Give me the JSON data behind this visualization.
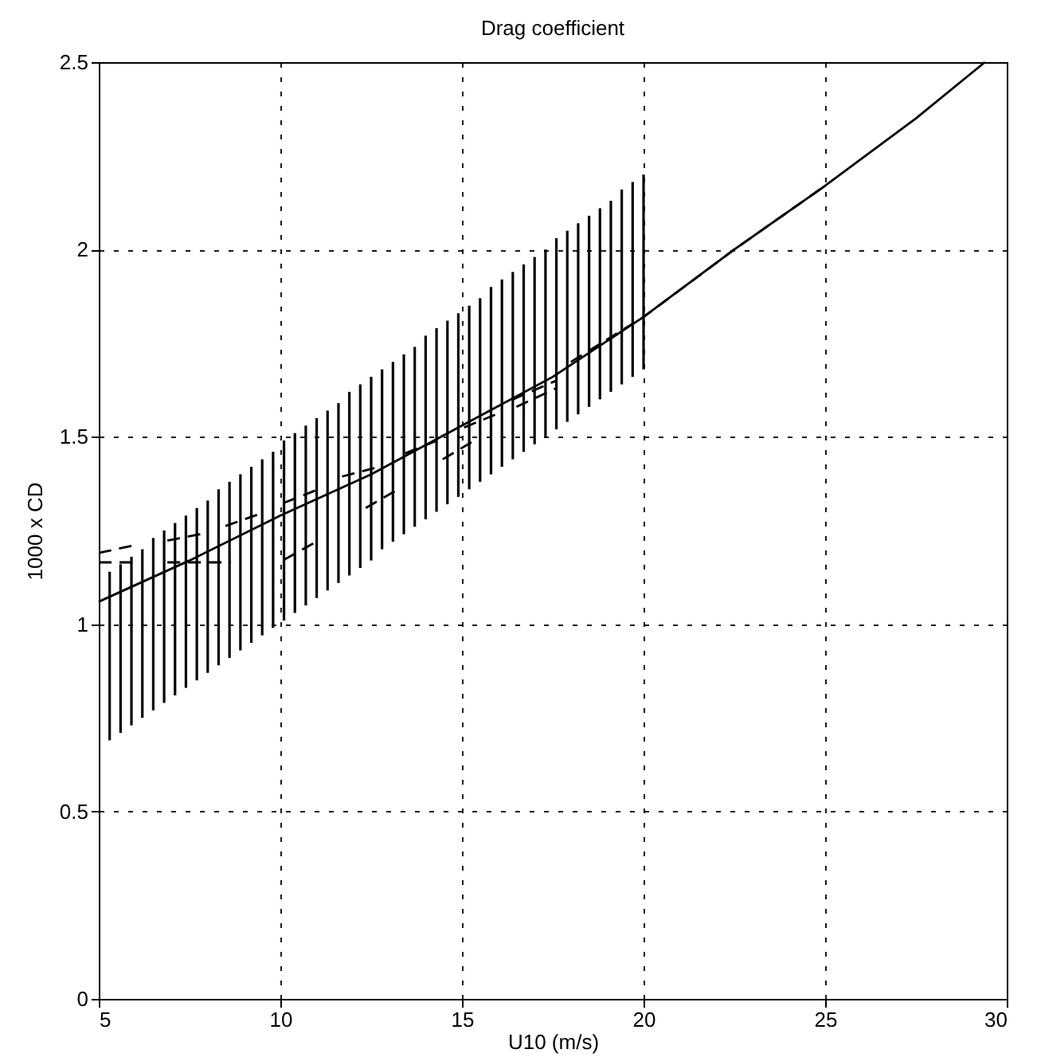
{
  "chart_data": {
    "type": "line",
    "title": "Drag coefficient",
    "xlabel": "U10  (m/s)",
    "ylabel": "1000 x CD",
    "xlim": [
      5,
      30
    ],
    "ylim": [
      0,
      2.5
    ],
    "xticks": [
      5,
      10,
      15,
      20,
      25,
      30
    ],
    "yticks": [
      0,
      0.5,
      1,
      1.5,
      2,
      2.5
    ],
    "grid": true,
    "series": [
      {
        "line_style": "solid",
        "color": "#000000",
        "x": [
          5,
          7.5,
          10,
          12.5,
          15,
          17.5,
          20,
          22.5,
          25,
          27.5,
          29.4
        ],
        "values": [
          1.06,
          1.17,
          1.29,
          1.4,
          1.53,
          1.66,
          1.82,
          2.0,
          2.17,
          2.35,
          2.5
        ]
      },
      {
        "line_style": "dashed",
        "color": "#000000",
        "x": [
          5,
          5.95
        ],
        "values": [
          1.19,
          1.21
        ]
      },
      {
        "line_style": "dashed",
        "color": "#000000",
        "x": [
          5,
          5.9
        ],
        "values": [
          1.165,
          1.165
        ]
      },
      {
        "line_style": "dashed",
        "color": "#000000",
        "x": [
          6.89,
          7.84
        ],
        "values": [
          1.223,
          1.241
        ]
      },
      {
        "line_style": "dashed",
        "color": "#000000",
        "x": [
          6.89,
          8.64
        ],
        "values": [
          1.165,
          1.165
        ]
      },
      {
        "line_style": "dashed",
        "color": "#000000",
        "x": [
          8.49,
          9.51
        ],
        "values": [
          1.262,
          1.297
        ]
      },
      {
        "line_style": "dashed",
        "color": "#000000",
        "x": [
          10.1,
          11.05
        ],
        "values": [
          1.324,
          1.36
        ]
      },
      {
        "line_style": "dashed",
        "color": "#000000",
        "x": [
          10.1,
          10.99
        ],
        "values": [
          1.172,
          1.22
        ]
      },
      {
        "line_style": "dashed",
        "color": "#000000",
        "x": [
          11.7,
          12.72
        ],
        "values": [
          1.394,
          1.42
        ]
      },
      {
        "line_style": "dashed",
        "color": "#000000",
        "x": [
          12.35,
          13.24
        ],
        "values": [
          1.31,
          1.36
        ]
      },
      {
        "line_style": "dashed",
        "color": "#000000",
        "x": [
          13.44,
          14.32
        ],
        "values": [
          1.456,
          1.49
        ]
      },
      {
        "line_style": "dashed",
        "color": "#000000",
        "x": [
          14.47,
          15.34
        ],
        "values": [
          1.44,
          1.49
        ]
      },
      {
        "line_style": "dashed",
        "color": "#000000",
        "x": [
          15.06,
          15.94
        ],
        "values": [
          1.525,
          1.56
        ]
      },
      {
        "line_style": "dashed",
        "color": "#000000",
        "x": [
          16.4,
          17.6
        ],
        "values": [
          1.6,
          1.65
        ]
      },
      {
        "line_style": "dashed",
        "color": "#000000",
        "x": [
          16.5,
          17.6
        ],
        "values": [
          1.58,
          1.63
        ]
      },
      {
        "line_style": "dashed",
        "color": "#000000",
        "x": [
          18,
          20,
          22.5,
          25
        ],
        "values": [
          1.7,
          1.82,
          2.0,
          2.17
        ]
      },
      {
        "type": "bar",
        "color": "#000000",
        "x": [
          5.3,
          5.6,
          5.9,
          6.2,
          6.5,
          6.8,
          7.1,
          7.4,
          7.7,
          8.0,
          8.3,
          8.6,
          8.9,
          9.2,
          9.5,
          9.8,
          10.1,
          10.4,
          10.7,
          11.0,
          11.3,
          11.6,
          11.9,
          12.2,
          12.5,
          12.8,
          13.1,
          13.4,
          13.7,
          14.0,
          14.3,
          14.6,
          14.9,
          15.2,
          15.5,
          15.8,
          16.1,
          16.4,
          16.7,
          17.0,
          17.3,
          17.6,
          17.9,
          18.2,
          18.5,
          18.8,
          19.1,
          19.4,
          19.7,
          20.0
        ],
        "base": [
          0.69,
          0.71,
          0.73,
          0.75,
          0.77,
          0.79,
          0.81,
          0.83,
          0.85,
          0.87,
          0.89,
          0.91,
          0.93,
          0.95,
          0.97,
          0.99,
          1.01,
          1.03,
          1.05,
          1.07,
          1.09,
          1.11,
          1.13,
          1.15,
          1.17,
          1.2,
          1.22,
          1.24,
          1.26,
          1.28,
          1.3,
          1.32,
          1.34,
          1.36,
          1.38,
          1.4,
          1.42,
          1.44,
          1.46,
          1.48,
          1.5,
          1.52,
          1.54,
          1.56,
          1.58,
          1.6,
          1.62,
          1.64,
          1.66,
          1.68
        ],
        "values": [
          0.45,
          0.45,
          0.45,
          0.45,
          0.46,
          0.46,
          0.46,
          0.46,
          0.46,
          0.46,
          0.47,
          0.47,
          0.47,
          0.47,
          0.47,
          0.47,
          0.48,
          0.48,
          0.48,
          0.48,
          0.48,
          0.48,
          0.49,
          0.49,
          0.49,
          0.48,
          0.48,
          0.48,
          0.48,
          0.49,
          0.49,
          0.49,
          0.49,
          0.49,
          0.49,
          0.5,
          0.5,
          0.5,
          0.5,
          0.5,
          0.5,
          0.51,
          0.51,
          0.51,
          0.51,
          0.51,
          0.51,
          0.52,
          0.52,
          0.52
        ]
      }
    ]
  }
}
